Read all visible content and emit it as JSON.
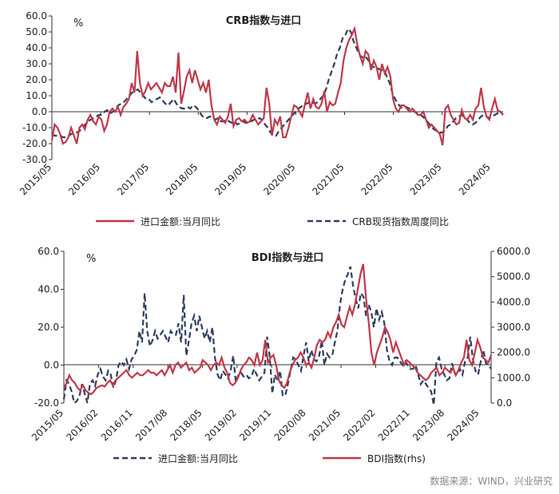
{
  "colors": {
    "red": "#C0394B",
    "navy": "#2F3F5E",
    "axis": "#333333"
  },
  "source_note": "数据来源：WIND，兴业研究",
  "chart_data": [
    {
      "type": "line",
      "title": "CRB指数与进口",
      "unit_label": "%",
      "ylim": [
        -30,
        60
      ],
      "yticks": [
        "60.0",
        "50.0",
        "40.0",
        "30.0",
        "20.0",
        "10.0",
        "0.0",
        "-10.0",
        "-20.0",
        "-30.0"
      ],
      "xticks": [
        "2015/05",
        "2016/05",
        "2017/05",
        "2018/05",
        "2019/05",
        "2020/05",
        "2021/05",
        "2022/05",
        "2023/05",
        "2024/05"
      ],
      "x_start": "2015/05",
      "x_end": "2024/08",
      "grid": false,
      "legend_position": "bottom",
      "series": [
        {
          "name": "进口金额:当月同比",
          "color": "red",
          "style": "solid",
          "values": [
            -18,
            -8,
            -10,
            -14,
            -20,
            -19,
            -16,
            -10,
            -15,
            -20,
            -10,
            -8,
            -11,
            -5,
            -2,
            -6,
            -8,
            -3,
            -5,
            -12,
            -8,
            0,
            2,
            0,
            3,
            -2,
            3,
            5,
            8,
            18,
            12,
            38,
            18,
            10,
            13,
            18,
            14,
            16,
            18,
            15,
            12,
            18,
            16,
            16,
            22,
            12,
            37,
            5,
            13,
            22,
            26,
            18,
            26,
            20,
            14,
            18,
            12,
            20,
            4,
            -5,
            -8,
            -3,
            -5,
            -7,
            -3,
            5,
            -9,
            -5,
            -4,
            -6,
            -5,
            -7,
            -6,
            -2,
            -5,
            -8,
            -6,
            -4,
            15,
            5,
            -15,
            -5,
            -8,
            -3,
            -16,
            -16,
            -10,
            -3,
            4,
            3,
            0,
            -3,
            5,
            12,
            2,
            8,
            3,
            2,
            5,
            13,
            0,
            6,
            4,
            5,
            12,
            18,
            32,
            40,
            45,
            48,
            52,
            42,
            35,
            30,
            38,
            36,
            26,
            32,
            28,
            20,
            30,
            24,
            28,
            22,
            8,
            2,
            0,
            4,
            4,
            2,
            0,
            2,
            0,
            -2,
            -2,
            0,
            -5,
            -10,
            -8,
            -10,
            -12,
            -14,
            -21,
            2,
            4,
            -2,
            -5,
            -8,
            -7,
            1,
            -4,
            -5,
            -2,
            -5,
            2,
            4,
            15,
            3,
            -3,
            -5,
            2,
            8,
            1,
            0,
            -2
          ]
        },
        {
          "name": "CRB现货指数周度同比",
          "color": "navy",
          "style": "dashed",
          "values": [
            -14,
            -15,
            -15,
            -15,
            -16,
            -16,
            -15,
            -14,
            -13,
            -13,
            -12,
            -10,
            -8,
            -6,
            -5,
            -4,
            -3,
            -2,
            -2,
            0,
            1,
            -1,
            0,
            2,
            4,
            5,
            6,
            8,
            10,
            12,
            13,
            14,
            12,
            10,
            8,
            8,
            6,
            7,
            8,
            9,
            7,
            5,
            4,
            6,
            8,
            5,
            3,
            2,
            2,
            3,
            2,
            4,
            3,
            1,
            -2,
            -4,
            -4,
            -3,
            -3,
            -5,
            -4,
            -6,
            -6,
            -5,
            -6,
            -7,
            -6,
            -8,
            -7,
            -6,
            -7,
            -6,
            -6,
            -5,
            -5,
            -4,
            -5,
            -8,
            -10,
            -13,
            -15,
            -15,
            -12,
            -10,
            -8,
            -6,
            -4,
            -2,
            0,
            2,
            3,
            5,
            5,
            6,
            6,
            5,
            6,
            8,
            10,
            14,
            20,
            25,
            30,
            36,
            40,
            46,
            48,
            52,
            50,
            44,
            40,
            36,
            34,
            35,
            33,
            30,
            28,
            28,
            27,
            26,
            26,
            22,
            18,
            12,
            8,
            5,
            3,
            2,
            3,
            2,
            1,
            0,
            -1,
            -2,
            -3,
            -5,
            -7,
            -9,
            -11,
            -12,
            -13,
            -13,
            -12,
            -9,
            -8,
            -6,
            -4,
            -3,
            -2,
            -3,
            -5,
            -7,
            -8,
            -7,
            -5,
            -3,
            -2,
            -3,
            -4,
            -3,
            -2,
            -1,
            0,
            -2
          ]
        }
      ]
    },
    {
      "type": "line",
      "title": "BDI指数与进口",
      "unit_label": "%",
      "ylim": [
        -20,
        60
      ],
      "yticks": [
        "60.0",
        "40.0",
        "20.0",
        "0.0",
        "-20.0"
      ],
      "y2lim": [
        0,
        6000
      ],
      "y2ticks": [
        "6000.0",
        "5000.0",
        "4000.0",
        "3000.0",
        "2000.0",
        "1000.0",
        "0.0"
      ],
      "xticks": [
        "2015/05",
        "2016/02",
        "2016/11",
        "2017/08",
        "2018/05",
        "2019/02",
        "2019/11",
        "2020/08",
        "2021/05",
        "2022/02",
        "2022/11",
        "2023/08",
        "2024/05"
      ],
      "x_start": "2015/05",
      "x_end": "2024/08",
      "grid": false,
      "legend_position": "bottom",
      "series": [
        {
          "name": "进口金额:当月同比",
          "color": "navy",
          "style": "dashed",
          "axis": "left",
          "values": [
            -18,
            -8,
            -10,
            -14,
            -20,
            -19,
            -16,
            -10,
            -15,
            -20,
            -10,
            -8,
            -11,
            -5,
            -2,
            -6,
            -8,
            -3,
            -5,
            -12,
            -8,
            0,
            2,
            0,
            3,
            -2,
            3,
            5,
            8,
            18,
            12,
            38,
            18,
            10,
            13,
            18,
            14,
            16,
            18,
            15,
            12,
            18,
            16,
            16,
            22,
            12,
            37,
            5,
            13,
            22,
            26,
            18,
            26,
            20,
            14,
            18,
            12,
            20,
            4,
            -5,
            -8,
            -3,
            -5,
            -7,
            -3,
            5,
            -9,
            -5,
            -4,
            -6,
            -5,
            -7,
            -6,
            -2,
            -5,
            -8,
            -6,
            -4,
            15,
            5,
            -15,
            -5,
            -8,
            -3,
            -16,
            -16,
            -10,
            -3,
            4,
            3,
            0,
            -3,
            5,
            12,
            2,
            8,
            3,
            2,
            5,
            13,
            0,
            6,
            4,
            5,
            12,
            18,
            32,
            40,
            45,
            48,
            52,
            42,
            35,
            30,
            38,
            36,
            26,
            32,
            28,
            20,
            30,
            24,
            28,
            22,
            8,
            2,
            0,
            4,
            4,
            2,
            0,
            2,
            0,
            -2,
            -2,
            0,
            -5,
            -10,
            -8,
            -10,
            -12,
            -14,
            -21,
            2,
            4,
            -2,
            -5,
            -8,
            -7,
            1,
            -4,
            -5,
            -2,
            -5,
            2,
            4,
            15,
            3,
            -3,
            -5,
            2,
            8,
            1,
            0,
            -2
          ]
        },
        {
          "name": "BDI指数(rhs)",
          "color": "red",
          "style": "solid",
          "axis": "right",
          "values": [
            600,
            800,
            1100,
            900,
            800,
            600,
            500,
            700,
            500,
            400,
            350,
            450,
            600,
            650,
            700,
            650,
            800,
            900,
            700,
            900,
            1000,
            1100,
            1200,
            1300,
            1100,
            1000,
            1100,
            1200,
            1100,
            1100,
            1200,
            1300,
            1200,
            1200,
            1100,
            1200,
            1300,
            1100,
            1300,
            1500,
            1200,
            1500,
            1600,
            1400,
            1500,
            1600,
            1300,
            1400,
            1200,
            1300,
            1400,
            1700,
            1600,
            1500,
            1300,
            1500,
            1600,
            1500,
            1800,
            1400,
            1200,
            800,
            700,
            800,
            1000,
            1300,
            1500,
            1600,
            1800,
            1700,
            1500,
            2000,
            1500,
            1700,
            2500,
            1600,
            1800,
            1900,
            1500,
            900,
            700,
            600,
            800,
            1200,
            1500,
            1700,
            1800,
            2000,
            1800,
            1500,
            1600,
            1400,
            1800,
            2300,
            2500,
            2400,
            2500,
            2800,
            2600,
            3000,
            3200,
            3500,
            3100,
            3000,
            3400,
            3800,
            3500,
            3900,
            4500,
            5100,
            5500,
            4200,
            3200,
            2000,
            1500,
            2000,
            2300,
            2600,
            3000,
            2800,
            2500,
            2000,
            2400,
            2100,
            1800,
            1500,
            1700,
            1600,
            1500,
            1400,
            1200,
            1100,
            1000,
            900,
            1000,
            1200,
            1300,
            1400,
            1100,
            1200,
            1400,
            1300,
            1200,
            1400,
            1100,
            1300,
            1600,
            1800,
            2500,
            1700,
            1500,
            2000,
            2500,
            2200,
            1800,
            1700,
            1600,
            1900
          ]
        }
      ]
    }
  ]
}
